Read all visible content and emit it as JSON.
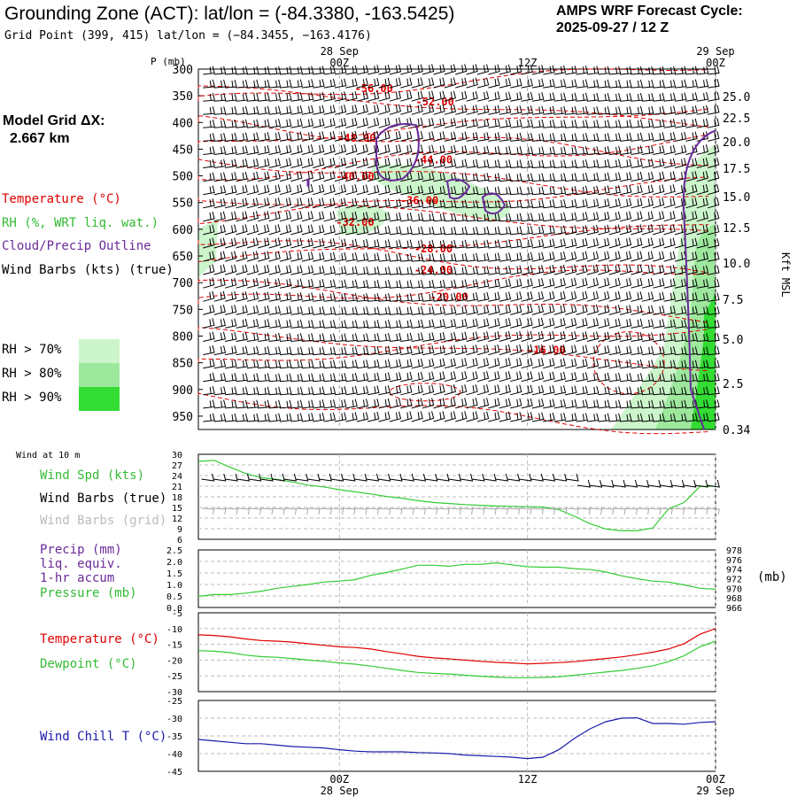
{
  "header": {
    "title": "Grounding Zone (ACT):  lat/lon = (-84.3380, -163.5425)",
    "grid_point": "Grid Point (399, 415) lat/lon = (−84.3455, −163.4176)",
    "cycle_line1": "AMPS WRF Forecast Cycle:",
    "cycle_line2": "2025-09-27 / 12  Z"
  },
  "side": {
    "model_grid_line1": "Model Grid ΔX:",
    "model_grid_line2": "2.667 km",
    "legend_temperature": "Temperature (°C)",
    "legend_rh": "RH (%, WRT liq. wat.)",
    "legend_cloud": "Cloud/Precip Outline",
    "legend_wind": "Wind Barbs (kts) (true)",
    "rh_levels": [
      "RH > 70%",
      "RH > 80%",
      "RH > 90%"
    ],
    "rh_colors": [
      "#ccf5cc",
      "#9ee89e",
      "#33dd33"
    ]
  },
  "chart_data": [
    {
      "type": "contour",
      "name": "vertical-cross-section",
      "title": "Pressure-time cross section",
      "y_axis_label": "P (mb)",
      "right_axis_label": "Kft MSL",
      "pressure_ticks": [
        300,
        350,
        400,
        450,
        500,
        550,
        600,
        650,
        700,
        750,
        800,
        850,
        900,
        950
      ],
      "kft_ticks": [
        "25.0",
        "22.5",
        "20.0",
        "17.5",
        "15.0",
        "12.5",
        "10.0",
        "7.5",
        "5.0",
        "2.5",
        "0.34"
      ],
      "time_ticks_top": [
        {
          "hour": 12,
          "label": "00Z",
          "date": "28 Sep"
        },
        {
          "hour": 24,
          "label": "12Z",
          "date": ""
        },
        {
          "hour": 36,
          "label": "00Z",
          "date": "29 Sep"
        }
      ],
      "hours_range": [
        3,
        36
      ],
      "ylim": [
        300,
        975
      ],
      "temperature_labels": [
        {
          "text": "-56.00",
          "hour": 14.2,
          "p": 335
        },
        {
          "text": "-52.00",
          "hour": 18.1,
          "p": 360
        },
        {
          "text": "-48.00",
          "hour": 13.1,
          "p": 428
        },
        {
          "text": "-44.00",
          "hour": 18.0,
          "p": 468
        },
        {
          "text": "-40.00",
          "hour": 13.0,
          "p": 500
        },
        {
          "text": "-36.00",
          "hour": 17.1,
          "p": 545
        },
        {
          "text": "-32.00",
          "hour": 13.0,
          "p": 585
        },
        {
          "text": "-28.00",
          "hour": 18.0,
          "p": 635
        },
        {
          "text": "-24.00",
          "hour": 18.0,
          "p": 675
        },
        {
          "text": "-20.00",
          "hour": 19.0,
          "p": 725
        },
        {
          "text": "-16.00",
          "hour": 25.2,
          "p": 825
        }
      ],
      "temperature_colour": "#e00000",
      "cloud_colour": "#6a2a9a"
    },
    {
      "type": "line",
      "name": "wind-speed-10m",
      "panel_title": "Wind at 10 m",
      "labels": [
        "Wind Spd (kts)",
        "Wind Barbs (true)",
        "Wind Barbs (grid)"
      ],
      "yticks": [
        6,
        9,
        12,
        15,
        18,
        21,
        24,
        27,
        30
      ],
      "ylim": [
        6,
        30
      ],
      "x": [
        3,
        4,
        5,
        6,
        7,
        8,
        9,
        10,
        11,
        12,
        13,
        14,
        15,
        16,
        17,
        18,
        19,
        20,
        21,
        22,
        23,
        24,
        25,
        26,
        27,
        28,
        29,
        30,
        31,
        32,
        33,
        34,
        35,
        36
      ],
      "values": [
        28,
        28.3,
        26.4,
        24.6,
        23.4,
        22.9,
        22.2,
        21.3,
        20.8,
        20,
        19.4,
        18.8,
        18.1,
        17.6,
        16.9,
        16.4,
        16.1,
        15.8,
        15.6,
        15.4,
        15.3,
        15.2,
        15.1,
        14.4,
        12.5,
        10.4,
        8.9,
        8.4,
        8.4,
        9.2,
        14.6,
        16.4,
        20.9,
        21
      ],
      "colour": "#33cc33"
    },
    {
      "type": "line",
      "name": "precip-pressure",
      "labels": [
        "Precip (mm)",
        "liq. equiv.",
        "1-hr accum",
        "Pressure (mb)"
      ],
      "left_ticks": [
        "0.0",
        "0.5",
        "1.0",
        "1.5",
        "2.0",
        "2.5"
      ],
      "right_ticks": [
        "966",
        "968",
        "970",
        "972",
        "974",
        "976",
        "978"
      ],
      "right_unit": "(mb)",
      "ylim_right": [
        966,
        978
      ],
      "x": [
        3,
        4,
        5,
        6,
        7,
        8,
        9,
        10,
        11,
        12,
        13,
        14,
        15,
        16,
        17,
        18,
        19,
        20,
        21,
        22,
        23,
        24,
        25,
        26,
        27,
        28,
        29,
        30,
        31,
        32,
        33,
        34,
        35,
        36
      ],
      "pressure": [
        968.3,
        968.7,
        968.7,
        969.0,
        969.4,
        970.0,
        970.4,
        970.8,
        971.3,
        971.5,
        971.8,
        972.7,
        973.3,
        974.0,
        974.8,
        974.8,
        974.6,
        975.0,
        975.0,
        975.3,
        974.9,
        974.5,
        974.4,
        974.4,
        974.1,
        973.9,
        973.4,
        972.6,
        972.0,
        971.5,
        971.3,
        970.7,
        970.0,
        969.8
      ],
      "colour": "#33cc33"
    },
    {
      "type": "line",
      "name": "temperature-dewpoint",
      "labels": [
        "Temperature (°C)",
        "Dewpoint (°C)"
      ],
      "yticks": [
        -30,
        -25,
        -20,
        -15,
        -10,
        -5
      ],
      "ylim": [
        -30,
        -5
      ],
      "x": [
        3,
        4,
        5,
        6,
        7,
        8,
        9,
        10,
        11,
        12,
        13,
        14,
        15,
        16,
        17,
        18,
        19,
        20,
        21,
        22,
        23,
        24,
        25,
        26,
        27,
        28,
        29,
        30,
        31,
        32,
        33,
        34,
        35,
        36
      ],
      "series": [
        {
          "name": "Temperature",
          "colour": "#e00000",
          "values": [
            -12.0,
            -12.2,
            -12.6,
            -13.3,
            -13.8,
            -14.0,
            -14.3,
            -14.8,
            -15.3,
            -15.8,
            -16.0,
            -16.5,
            -17.3,
            -18.0,
            -18.8,
            -19.3,
            -19.6,
            -20.0,
            -20.4,
            -20.7,
            -20.9,
            -21.2,
            -21.0,
            -20.8,
            -20.5,
            -20.0,
            -19.5,
            -19.0,
            -18.3,
            -17.5,
            -16.5,
            -14.8,
            -11.8,
            -10.0
          ]
        },
        {
          "name": "Dewpoint",
          "colour": "#33cc33",
          "values": [
            -17.0,
            -17.2,
            -17.6,
            -18.4,
            -18.9,
            -19.1,
            -19.5,
            -20.0,
            -20.4,
            -20.9,
            -21.3,
            -21.9,
            -22.6,
            -23.3,
            -23.9,
            -24.2,
            -24.4,
            -24.8,
            -25.1,
            -25.4,
            -25.6,
            -25.6,
            -25.5,
            -25.3,
            -24.8,
            -24.3,
            -23.8,
            -23.3,
            -22.6,
            -21.8,
            -20.5,
            -18.6,
            -15.8,
            -14.0
          ]
        }
      ]
    },
    {
      "type": "line",
      "name": "wind-chill",
      "labels": [
        "Wind Chill T (°C)"
      ],
      "yticks": [
        -45,
        -40,
        -35,
        -30,
        -25
      ],
      "ylim": [
        -45,
        -25
      ],
      "x": [
        3,
        4,
        5,
        6,
        7,
        8,
        9,
        10,
        11,
        12,
        13,
        14,
        15,
        16,
        17,
        18,
        19,
        20,
        21,
        22,
        23,
        24,
        25,
        26,
        27,
        28,
        29,
        30,
        31,
        32,
        33,
        34,
        35,
        36
      ],
      "values": [
        -36.0,
        -36.4,
        -36.8,
        -37.2,
        -37.2,
        -37.6,
        -38.0,
        -38.2,
        -38.4,
        -38.9,
        -39.3,
        -39.5,
        -39.5,
        -39.5,
        -39.7,
        -39.8,
        -40.0,
        -40.4,
        -40.6,
        -40.8,
        -41.0,
        -41.4,
        -41.0,
        -38.9,
        -35.7,
        -33.0,
        -31.0,
        -30.0,
        -29.9,
        -31.5,
        -31.5,
        -31.7,
        -31.2,
        -31.0
      ],
      "colour": "#1a1aaa",
      "time_ticks_bottom": [
        {
          "hour": 12,
          "label": "00Z",
          "date": "28 Sep"
        },
        {
          "hour": 24,
          "label": "12Z",
          "date": ""
        },
        {
          "hour": 36,
          "label": "00Z",
          "date": "29 Sep"
        }
      ]
    }
  ]
}
